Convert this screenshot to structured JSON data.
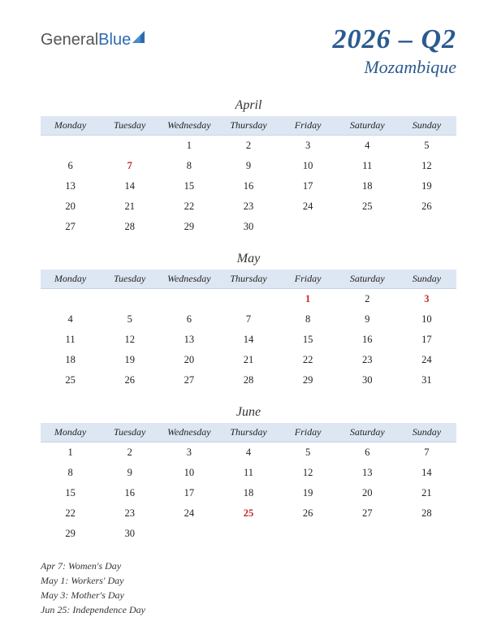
{
  "logo": {
    "part1": "General",
    "part2": "Blue"
  },
  "header": {
    "title": "2026 – Q2",
    "subtitle": "Mozambique"
  },
  "weekdays": [
    "Monday",
    "Tuesday",
    "Wednesday",
    "Thursday",
    "Friday",
    "Saturday",
    "Sunday"
  ],
  "colors": {
    "header_bg": "#dde7f3",
    "title_color": "#2b5a8f",
    "holiday_color": "#c62828",
    "text_color": "#222222",
    "background": "#ffffff"
  },
  "typography": {
    "title_fontsize": 34,
    "subtitle_fontsize": 22,
    "month_fontsize": 16,
    "weekday_fontsize": 12,
    "day_fontsize": 12.5,
    "holiday_list_fontsize": 12,
    "font_family": "Georgia, serif",
    "italic_headers": true
  },
  "months": [
    {
      "name": "April",
      "weeks": [
        [
          "",
          "",
          "1",
          "2",
          "3",
          "4",
          "5"
        ],
        [
          "6",
          "7",
          "8",
          "9",
          "10",
          "11",
          "12"
        ],
        [
          "13",
          "14",
          "15",
          "16",
          "17",
          "18",
          "19"
        ],
        [
          "20",
          "21",
          "22",
          "23",
          "24",
          "25",
          "26"
        ],
        [
          "27",
          "28",
          "29",
          "30",
          "",
          "",
          ""
        ]
      ],
      "holidays": [
        [
          1,
          1
        ]
      ]
    },
    {
      "name": "May",
      "weeks": [
        [
          "",
          "",
          "",
          "",
          "1",
          "2",
          "3"
        ],
        [
          "4",
          "5",
          "6",
          "7",
          "8",
          "9",
          "10"
        ],
        [
          "11",
          "12",
          "13",
          "14",
          "15",
          "16",
          "17"
        ],
        [
          "18",
          "19",
          "20",
          "21",
          "22",
          "23",
          "24"
        ],
        [
          "25",
          "26",
          "27",
          "28",
          "29",
          "30",
          "31"
        ]
      ],
      "holidays": [
        [
          0,
          4
        ],
        [
          0,
          6
        ]
      ]
    },
    {
      "name": "June",
      "weeks": [
        [
          "1",
          "2",
          "3",
          "4",
          "5",
          "6",
          "7"
        ],
        [
          "8",
          "9",
          "10",
          "11",
          "12",
          "13",
          "14"
        ],
        [
          "15",
          "16",
          "17",
          "18",
          "19",
          "20",
          "21"
        ],
        [
          "22",
          "23",
          "24",
          "25",
          "26",
          "27",
          "28"
        ],
        [
          "29",
          "30",
          "",
          "",
          "",
          "",
          ""
        ]
      ],
      "holidays": [
        [
          3,
          3
        ]
      ]
    }
  ],
  "holiday_list": [
    "Apr 7: Women's Day",
    "May 1: Workers' Day",
    "May 3: Mother's Day",
    "Jun 25: Independence Day"
  ]
}
